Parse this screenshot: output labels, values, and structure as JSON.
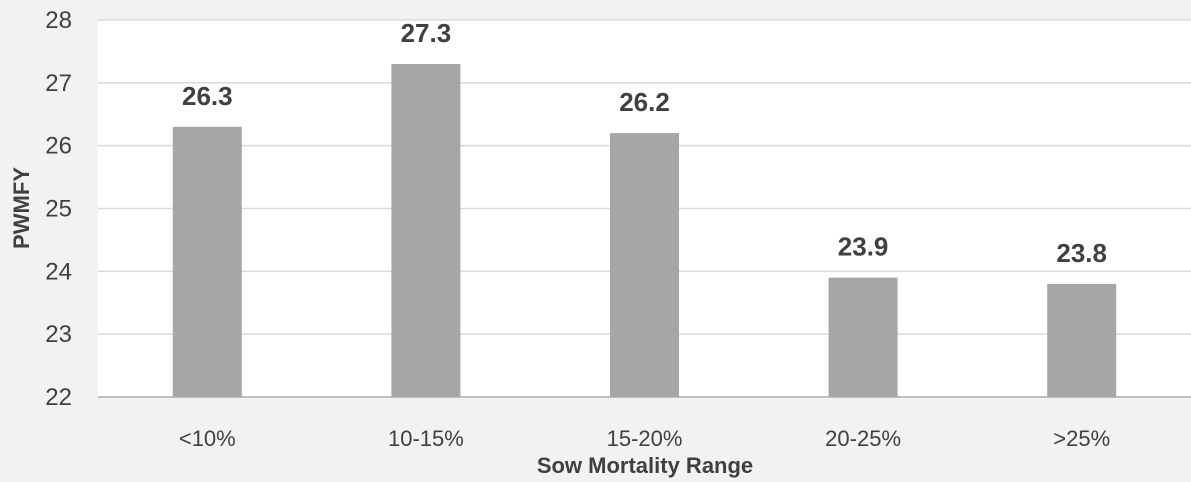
{
  "chart_data": {
    "type": "bar",
    "categories": [
      "<10%",
      "10-15%",
      "15-20%",
      "20-25%",
      ">25%"
    ],
    "values": [
      26.3,
      27.3,
      26.2,
      23.9,
      23.8
    ],
    "value_labels": [
      "26.3",
      "27.3",
      "26.2",
      "23.9",
      "23.8"
    ],
    "xlabel": "Sow Mortality Range",
    "ylabel": "PWMFY",
    "ylim": [
      22,
      28
    ],
    "yticks": [
      "22",
      "23",
      "24",
      "25",
      "26",
      "27",
      "28"
    ],
    "grid": true,
    "colors": {
      "bar": "#a6a6a6",
      "plot_bg": "#ffffff",
      "page_bg": "#f2f2f2",
      "grid": "#d9d9d9",
      "text": "#404040"
    }
  }
}
